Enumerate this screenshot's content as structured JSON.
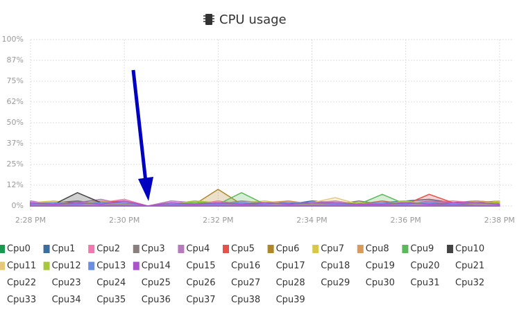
{
  "chart_data": {
    "type": "area",
    "title": "CPU usage",
    "xlim": [
      868,
      878.27
    ],
    "xticks": [
      {
        "value": 868,
        "label": "2:28 PM"
      },
      {
        "value": 870,
        "label": "2:30 PM"
      },
      {
        "value": 872,
        "label": "2:32 PM"
      },
      {
        "value": 874,
        "label": "2:34 PM"
      },
      {
        "value": 876,
        "label": "2:36 PM"
      },
      {
        "value": 878,
        "label": "2:38 PM"
      }
    ],
    "ylim": [
      0,
      100
    ],
    "yticks": [
      {
        "value": 0,
        "label": "0%"
      },
      {
        "value": 12.5,
        "label": "12%"
      },
      {
        "value": 25,
        "label": "25%"
      },
      {
        "value": 37.5,
        "label": "37%"
      },
      {
        "value": 50,
        "label": "50%"
      },
      {
        "value": 62.5,
        "label": "62%"
      },
      {
        "value": 75,
        "label": "75%"
      },
      {
        "value": 87.5,
        "label": "87%"
      },
      {
        "value": 100,
        "label": "100%"
      }
    ],
    "grid": true,
    "x": [
      868,
      868.5,
      869,
      869.5,
      870,
      870.5,
      871,
      871.5,
      872,
      872.5,
      873,
      873.5,
      874,
      874.5,
      875,
      875.5,
      876,
      876.5,
      877,
      877.5,
      878
    ],
    "series": [
      {
        "name": "Cpu0",
        "color": "#1a9850",
        "values": [
          1,
          2,
          1,
          3,
          1,
          0,
          1,
          2,
          1,
          3,
          1,
          2,
          1,
          1,
          2,
          1,
          1,
          2,
          1,
          1,
          2
        ]
      },
      {
        "name": "Cpu1",
        "color": "#3b6e9e",
        "values": [
          2,
          1,
          3,
          1,
          2,
          0,
          1,
          1,
          2,
          1,
          2,
          1,
          3,
          2,
          1,
          2,
          3,
          4,
          2,
          3,
          2
        ]
      },
      {
        "name": "Cpu2",
        "color": "#f07ab0",
        "values": [
          1,
          3,
          1,
          2,
          4,
          0,
          2,
          1,
          3,
          1,
          2,
          2,
          1,
          3,
          1,
          2,
          1,
          2,
          3,
          2,
          1
        ]
      },
      {
        "name": "Cpu3",
        "color": "#8a7e7e",
        "values": [
          1,
          2,
          3,
          1,
          2,
          0,
          1,
          3,
          1,
          2,
          1,
          1,
          2,
          1,
          3,
          1,
          2,
          1,
          1,
          2,
          3
        ]
      },
      {
        "name": "Cpu4",
        "color": "#b57bbd",
        "values": [
          3,
          1,
          2,
          4,
          1,
          0,
          3,
          2,
          1,
          3,
          2,
          1,
          2,
          3,
          1,
          2,
          1,
          3,
          2,
          1,
          2
        ]
      },
      {
        "name": "Cpu5",
        "color": "#e8504a",
        "values": [
          2,
          1,
          1,
          2,
          3,
          0,
          1,
          2,
          1,
          2,
          1,
          3,
          1,
          2,
          1,
          3,
          1,
          7,
          2,
          1,
          2
        ]
      },
      {
        "name": "Cpu6",
        "color": "#b0862a",
        "values": [
          1,
          1,
          2,
          1,
          2,
          0,
          2,
          1,
          10,
          1,
          2,
          1,
          1,
          2,
          1,
          1,
          2,
          1,
          1,
          2,
          1
        ]
      },
      {
        "name": "Cpu7",
        "color": "#d8c84a",
        "values": [
          2,
          3,
          1,
          1,
          2,
          0,
          1,
          2,
          1,
          2,
          3,
          1,
          2,
          1,
          2,
          1,
          2,
          1,
          2,
          1,
          3
        ]
      },
      {
        "name": "Cpu8",
        "color": "#d99b5c",
        "values": [
          1,
          2,
          1,
          3,
          1,
          0,
          2,
          1,
          2,
          1,
          2,
          3,
          1,
          2,
          2,
          1,
          1,
          2,
          1,
          3,
          2
        ]
      },
      {
        "name": "Cpu9",
        "color": "#5cb85c",
        "values": [
          1,
          1,
          2,
          1,
          1,
          0,
          1,
          2,
          1,
          8,
          1,
          2,
          1,
          2,
          1,
          7,
          1,
          2,
          1,
          1,
          2
        ]
      },
      {
        "name": "Cpu10",
        "color": "#444444",
        "values": [
          2,
          1,
          8,
          2,
          1,
          0,
          1,
          1,
          2,
          1,
          1,
          2,
          1,
          1,
          2,
          1,
          2,
          1,
          1,
          1,
          2
        ]
      },
      {
        "name": "Cpu11",
        "color": "#e6c87a",
        "values": [
          1,
          2,
          1,
          1,
          2,
          0,
          2,
          1,
          1,
          2,
          1,
          1,
          2,
          5,
          1,
          2,
          1,
          1,
          2,
          1,
          1
        ]
      },
      {
        "name": "Cpu12",
        "color": "#a8c83c",
        "values": [
          2,
          1,
          2,
          2,
          1,
          0,
          1,
          3,
          2,
          1,
          2,
          1,
          1,
          1,
          2,
          1,
          3,
          1,
          2,
          1,
          2
        ]
      },
      {
        "name": "Cpu13",
        "color": "#6a8fe0",
        "values": [
          1,
          2,
          1,
          2,
          2,
          0,
          1,
          1,
          1,
          2,
          1,
          2,
          2,
          1,
          1,
          2,
          1,
          2,
          1,
          2,
          1
        ]
      },
      {
        "name": "Cpu14",
        "color": "#a855c8",
        "values": [
          2,
          1,
          2,
          1,
          3,
          0,
          2,
          1,
          2,
          1,
          2,
          1,
          2,
          2,
          1,
          1,
          2,
          1,
          2,
          2,
          1
        ]
      },
      {
        "name": "Cpu15"
      },
      {
        "name": "Cpu16"
      },
      {
        "name": "Cpu17"
      },
      {
        "name": "Cpu18"
      },
      {
        "name": "Cpu19"
      },
      {
        "name": "Cpu20"
      },
      {
        "name": "Cpu21"
      },
      {
        "name": "Cpu22"
      },
      {
        "name": "Cpu23"
      },
      {
        "name": "Cpu24"
      },
      {
        "name": "Cpu25"
      },
      {
        "name": "Cpu26"
      },
      {
        "name": "Cpu27"
      },
      {
        "name": "Cpu28"
      },
      {
        "name": "Cpu29"
      },
      {
        "name": "Cpu30"
      },
      {
        "name": "Cpu31"
      },
      {
        "name": "Cpu32"
      },
      {
        "name": "Cpu33"
      },
      {
        "name": "Cpu34"
      },
      {
        "name": "Cpu35"
      },
      {
        "name": "Cpu36"
      },
      {
        "name": "Cpu37"
      },
      {
        "name": "Cpu38"
      },
      {
        "name": "Cpu39"
      }
    ]
  }
}
